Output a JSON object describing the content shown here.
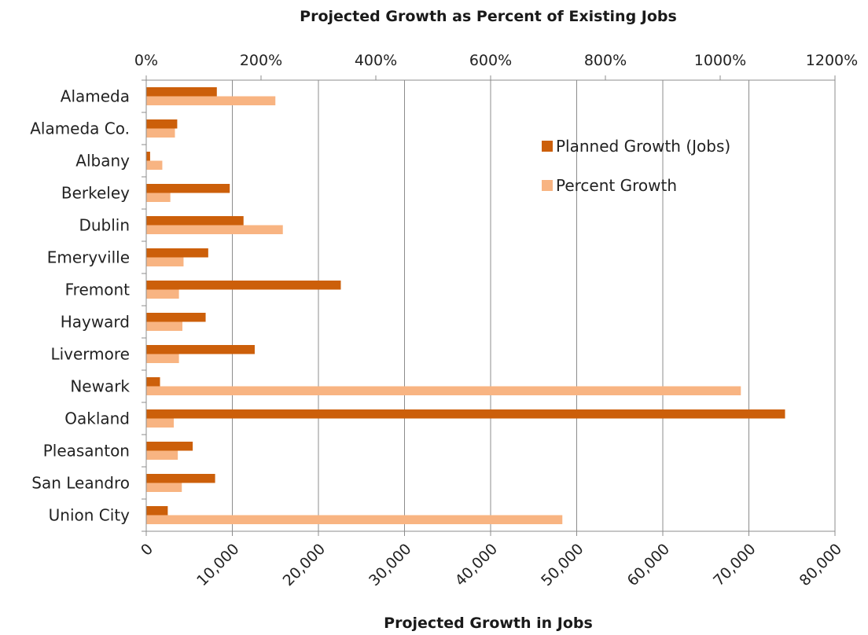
{
  "chart_data": {
    "type": "bar",
    "orientation": "horizontal",
    "title": "Projected Growth as Percent of Existing Jobs",
    "xlabel": "Projected Growth in Jobs",
    "categories": [
      "Alameda",
      "Alameda Co.",
      "Albany",
      "Berkeley",
      "Dublin",
      "Emeryville",
      "Fremont",
      "Hayward",
      "Livermore",
      "Newark",
      "Oakland",
      "Pleasanton",
      "San Leandro",
      "Union City"
    ],
    "series": [
      {
        "name": "Planned Growth (Jobs)",
        "axis": "primary",
        "color": "#cc5f0a",
        "values": [
          8200,
          3600,
          450,
          9700,
          11300,
          7200,
          22600,
          6900,
          12600,
          1600,
          74200,
          5400,
          8000,
          2500
        ]
      },
      {
        "name": "Percent Growth",
        "axis": "secondary",
        "color": "#f8b482",
        "values": [
          225,
          50,
          28,
          42,
          238,
          65,
          57,
          63,
          57,
          1036,
          48,
          55,
          62,
          725
        ]
      }
    ],
    "x_primary": {
      "min": 0,
      "max": 80000,
      "step": 10000,
      "tick_labels": [
        "0",
        "10,000",
        "20,000",
        "30,000",
        "40,000",
        "50,000",
        "60,000",
        "70,000",
        "80,000"
      ]
    },
    "x_secondary": {
      "min": 0,
      "max": 1200,
      "step": 200,
      "tick_labels": [
        "0%",
        "200%",
        "400%",
        "600%",
        "800%",
        "1000%",
        "1200%"
      ]
    },
    "grid": "vertical major gridlines on primary axis",
    "legend_position": "upper-right inside plot"
  }
}
